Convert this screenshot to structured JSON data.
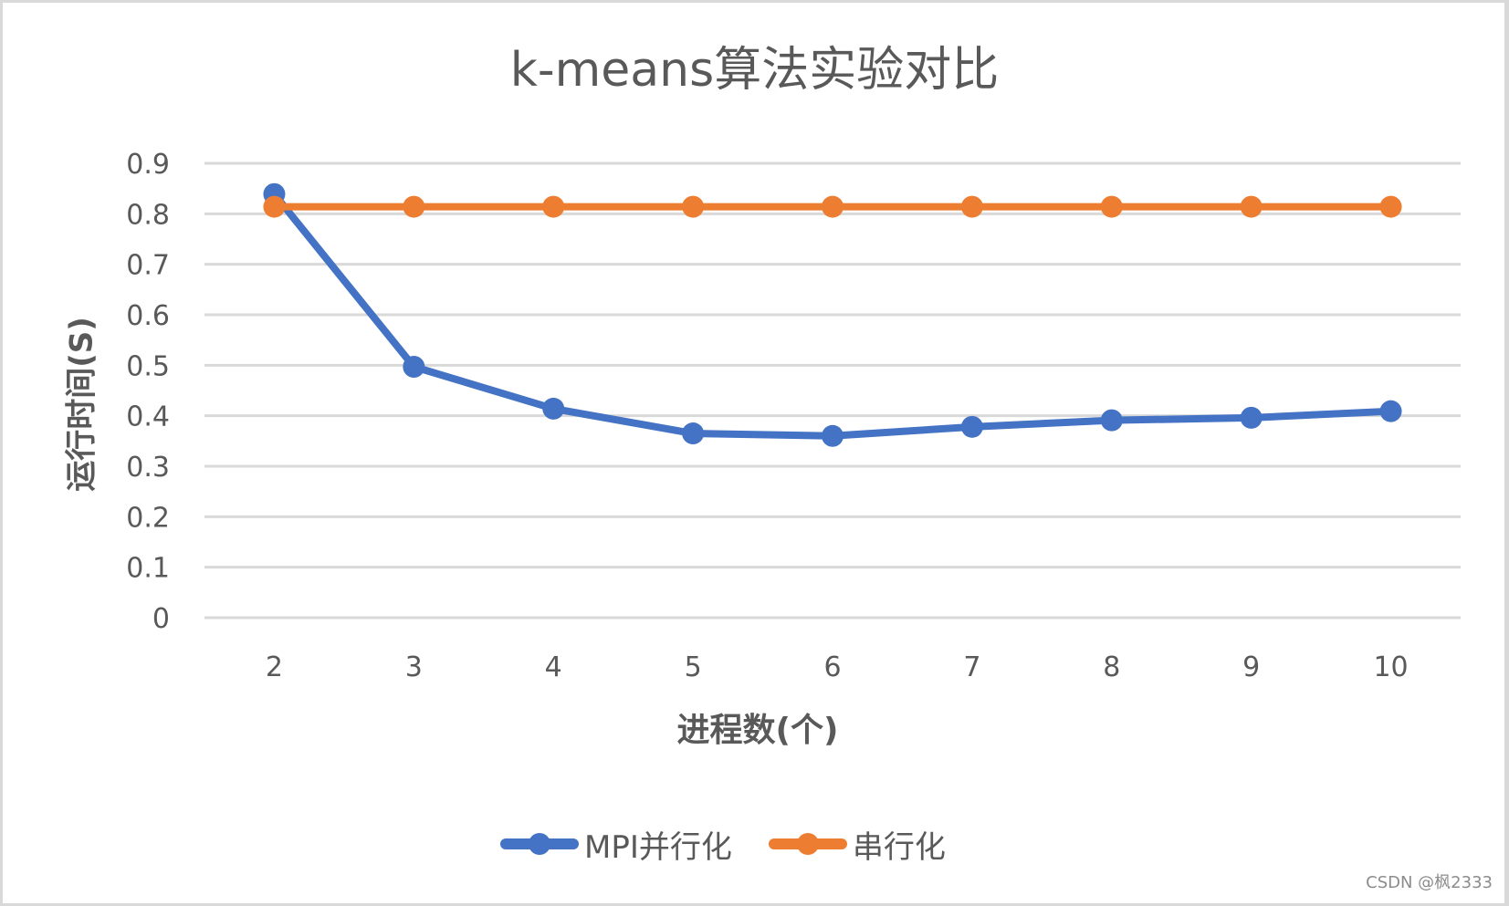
{
  "chart_data": {
    "type": "line",
    "title": "k-means算法实验对比",
    "xlabel": "进程数(个)",
    "ylabel": "运行时间(S)",
    "categories": [
      "2",
      "3",
      "4",
      "5",
      "6",
      "7",
      "8",
      "9",
      "10"
    ],
    "series": [
      {
        "name": "MPI并行化",
        "color": "#4472c4",
        "values": [
          0.839,
          0.497,
          0.414,
          0.365,
          0.36,
          0.378,
          0.391,
          0.396,
          0.409
        ]
      },
      {
        "name": "串行化",
        "color": "#ed7d31",
        "values": [
          0.814,
          0.814,
          0.814,
          0.814,
          0.814,
          0.814,
          0.814,
          0.814,
          0.814
        ]
      }
    ],
    "ylim": [
      0,
      0.9
    ],
    "yticks": [
      "0",
      "0.1",
      "0.2",
      "0.3",
      "0.4",
      "0.5",
      "0.6",
      "0.7",
      "0.8",
      "0.9"
    ],
    "grid": true,
    "legend_position": "bottom",
    "markers": true
  },
  "legend": {
    "items": [
      {
        "label": "MPI并行化",
        "color": "#4472c4"
      },
      {
        "label": "串行化",
        "color": "#ed7d31"
      }
    ]
  },
  "watermark": "CSDN @枫2333",
  "colors": {
    "gridline": "#d9d9d9",
    "text": "#595959",
    "border": "#d9d9d9"
  }
}
